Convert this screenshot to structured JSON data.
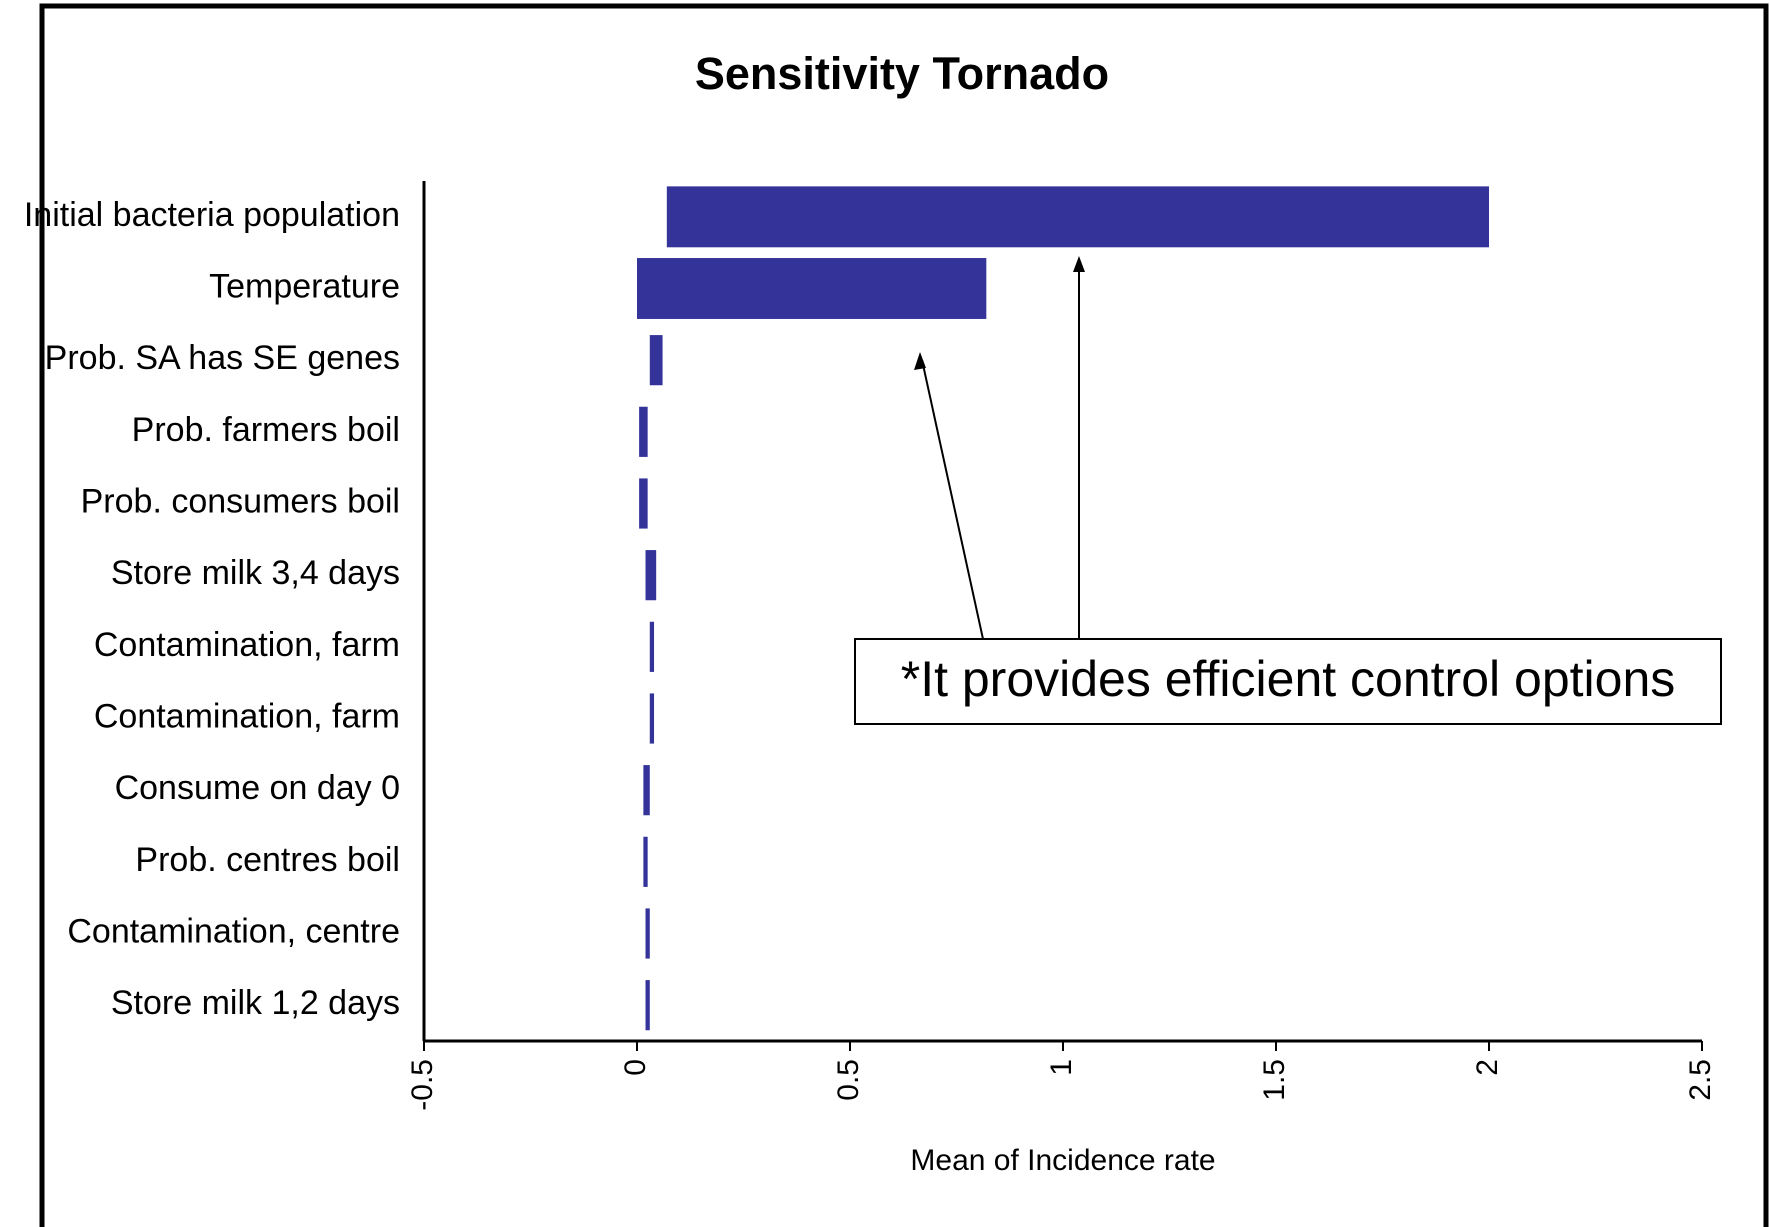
{
  "chart_data": {
    "type": "tornado",
    "title": "Sensitivity Tornado",
    "x_label": "Mean of Incidence rate",
    "annotation": "*It provides efficient control options",
    "categories": [
      "Initial bacteria population",
      "Temperature",
      "Prob. SA has SE genes",
      "Prob. farmers boil",
      "Prob. consumers boil",
      "Store milk 3,4 days",
      "Contamination, farm",
      "Contamination, farm",
      "Consume on day 0",
      "Prob. centres boil",
      "Contamination, centre",
      "Store milk 1,2 days"
    ],
    "low": [
      0.07,
      0.0,
      0.03,
      0.005,
      0.005,
      0.02,
      0.03,
      0.03,
      0.015,
      0.015,
      0.02,
      0.02
    ],
    "high": [
      2.0,
      0.82,
      0.06,
      0.025,
      0.025,
      0.045,
      0.04,
      0.04,
      0.03,
      0.025,
      0.03,
      0.03
    ],
    "color": "#333399",
    "xlim": [
      -0.5,
      2.5
    ],
    "xticks": [
      -0.5,
      0,
      0.5,
      1,
      1.5,
      2,
      2.5
    ]
  }
}
